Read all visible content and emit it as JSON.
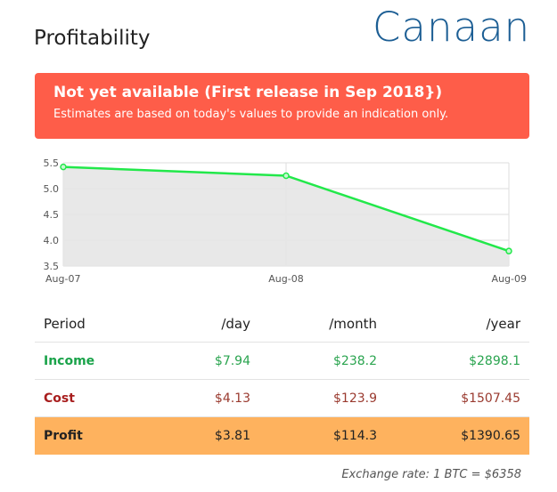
{
  "header": {
    "title": "Profitability",
    "brand": "Canaan"
  },
  "alert": {
    "title": "Not yet available (First release in Sep 2018})",
    "message": "Estimates are based on today's values to provide an indication only.",
    "color": "#fe5d49"
  },
  "chart_data": {
    "type": "area",
    "categories": [
      "Aug-07",
      "Aug-08",
      "Aug-09"
    ],
    "series": [
      {
        "values": [
          5.42,
          5.25,
          3.79
        ],
        "color": "#22e84a"
      }
    ],
    "yticks": [
      "5.5",
      "5.0",
      "4.5",
      "4.0",
      "3.5"
    ],
    "ylim": [
      3.5,
      5.5
    ],
    "grid": true,
    "fill_color": "#e5e5e5"
  },
  "table": {
    "columns": [
      "Period",
      "/day",
      "/month",
      "/year"
    ],
    "rows": [
      {
        "label": "Income",
        "day": "$7.94",
        "month": "$238.2",
        "year": "$2898.1"
      },
      {
        "label": "Cost",
        "day": "$4.13",
        "month": "$123.9",
        "year": "$1507.45"
      },
      {
        "label": "Profit",
        "day": "$3.81",
        "month": "$114.3",
        "year": "$1390.65"
      }
    ]
  },
  "footer": {
    "exchange": "Exchange rate: 1 BTC = $6358"
  }
}
